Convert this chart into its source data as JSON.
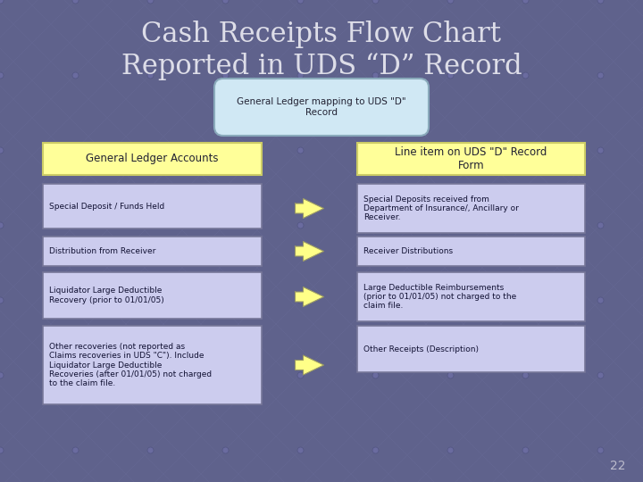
{
  "title_line1": "Cash Receipts Flow Chart",
  "title_line2": "Reported in UDS “D” Record",
  "bg_color": "#5f628c",
  "title_color": "#dddde8",
  "top_box_text": "General Ledger mapping to UDS \"D\"\nRecord",
  "top_box_bg": "#d0e8f4",
  "top_box_border": "#8aaabb",
  "header_left": "General Ledger Accounts",
  "header_right": "Line item on UDS \"D\" Record\nForm",
  "header_bg": "#ffff99",
  "header_border": "#cccc66",
  "rows": [
    {
      "left": "Special Deposit / Funds Held",
      "right": "Special Deposits received from\nDepartment of Insurance/, Ancillary or\nReceiver."
    },
    {
      "left": "Distribution from Receiver",
      "right": "Receiver Distributions"
    },
    {
      "left": "Liquidator Large Deductible\nRecovery (prior to 01/01/05)",
      "right": "Large Deductible Reimbursements\n(prior to 01/01/05) not charged to the\nclaim file."
    },
    {
      "left": "Other recoveries (not reported as\nClaims recoveries in UDS \"C\"). Include\nLiquidator Large Deductible\nRecoveries (after 01/01/05) not charged\nto the claim file.",
      "right": "Other Receipts (Description)"
    }
  ],
  "left_box_bg": "#ccccee",
  "left_box_border": "#777799",
  "right_box_bg": "#ccccee",
  "right_box_border": "#777799",
  "arrow_body_color": "#ffff88",
  "arrow_border_color": "#999966",
  "page_number": "22",
  "page_num_color": "#bbbbcc",
  "grid_color": "#6a6d9a",
  "dot_color": "#7070a8"
}
